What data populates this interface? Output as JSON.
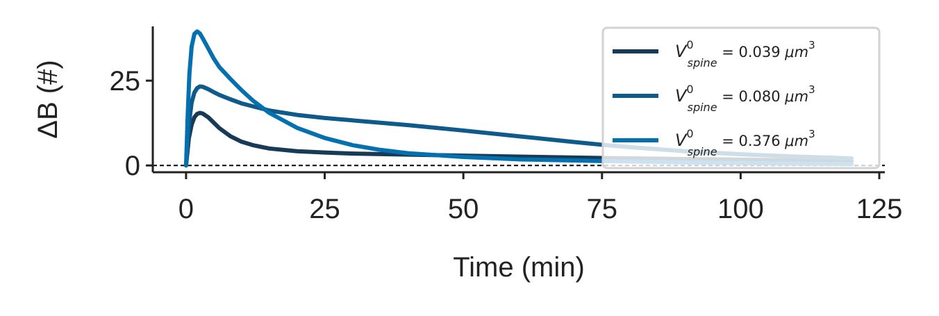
{
  "chart_data": {
    "type": "line",
    "xlabel": "Time (min)",
    "ylabel": "ΔB (#)",
    "xlim": [
      -6,
      126
    ],
    "ylim": [
      -2,
      41
    ],
    "xticks": [
      0,
      25,
      50,
      75,
      100,
      125
    ],
    "yticks": [
      0,
      25
    ],
    "grid": false,
    "legend_position": "top-right",
    "reference_line": {
      "y": 0,
      "style": "dashed"
    },
    "series": [
      {
        "name": "V^0_spine = 0.039 μm^3",
        "legend": {
          "sym": "V",
          "sup": "0",
          "sub": "spine",
          "eq": " = 0.039 ",
          "unit": "μm",
          "exp": "3"
        },
        "color": "#173a57",
        "x": [
          0,
          0.5,
          1,
          1.5,
          2,
          2.5,
          3,
          4,
          5,
          6,
          8,
          10,
          12,
          15,
          20,
          25,
          30,
          40,
          50,
          60,
          75,
          90,
          100,
          110,
          120
        ],
        "y": [
          0,
          8,
          12,
          14.2,
          15.2,
          15.5,
          15.3,
          14.2,
          12.6,
          11,
          8.6,
          7,
          6,
          5,
          4.2,
          3.8,
          3.5,
          3.2,
          2.9,
          2.6,
          2.2,
          1.9,
          1.7,
          1.5,
          1.3
        ]
      },
      {
        "name": "V^0_spine = 0.080 μm^3",
        "legend": {
          "sym": "V",
          "sup": "0",
          "sub": "spine",
          "eq": " = 0.080 ",
          "unit": "μm",
          "exp": "3"
        },
        "color": "#0e5a8a",
        "x": [
          0,
          0.5,
          1,
          1.5,
          2,
          2.5,
          3,
          4,
          5,
          6,
          8,
          10,
          15,
          20,
          25,
          30,
          40,
          50,
          60,
          70,
          75,
          80,
          90,
          100,
          110,
          120
        ],
        "y": [
          0,
          12,
          18.5,
          21.5,
          22.8,
          23.3,
          23.2,
          22.5,
          21.6,
          20.8,
          19.5,
          18.3,
          16.2,
          14.9,
          14,
          13.3,
          11.9,
          10.3,
          8.6,
          6.9,
          6.1,
          5.4,
          4.2,
          3.3,
          2.6,
          2.1
        ]
      },
      {
        "name": "V^0_spine = 0.376 μm^3",
        "legend": {
          "sym": "V",
          "sup": "0",
          "sub": "spine",
          "eq": " = 0.376 ",
          "unit": "μm",
          "exp": "3"
        },
        "color": "#0570b0",
        "x": [
          0,
          0.3,
          0.6,
          1,
          1.5,
          2,
          2.5,
          3,
          4,
          5,
          6,
          8,
          10,
          12,
          15,
          20,
          25,
          30,
          35,
          40,
          50,
          60,
          75,
          90,
          100,
          110,
          120
        ],
        "y": [
          0,
          15,
          27,
          35,
          38.8,
          39.5,
          38.9,
          37.5,
          34.5,
          31.5,
          29,
          25.5,
          22.2,
          19.2,
          15.5,
          11.1,
          8.1,
          6,
          4.6,
          3.6,
          2.5,
          1.8,
          1.3,
          0.9,
          0.7,
          0.55,
          0.4
        ]
      }
    ]
  },
  "colors": {
    "axis": "#222222",
    "legend_border": "#d3d3d3"
  }
}
